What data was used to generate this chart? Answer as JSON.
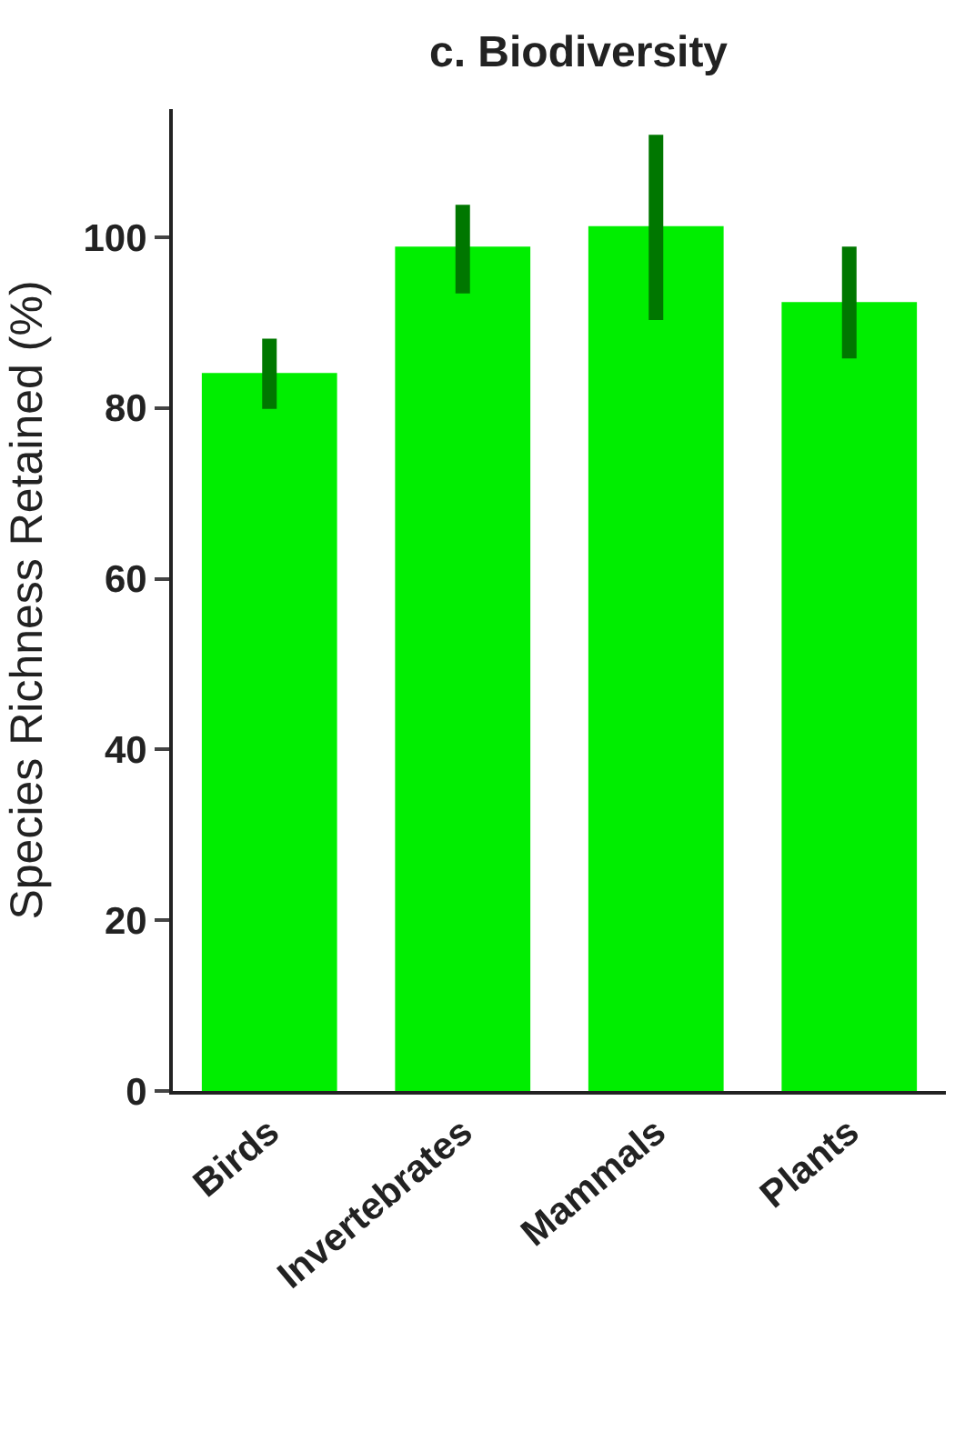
{
  "chart_data": {
    "type": "bar",
    "title": "c. Biodiversity",
    "ylabel": "Species Richness Retained (%)",
    "categories": [
      "Birds",
      "Invertebrates",
      "Mammals",
      "Plants"
    ],
    "values": [
      84.1,
      98.9,
      101.3,
      92.4
    ],
    "errors": [
      [
        79.9,
        88.1
      ],
      [
        93.4,
        103.8
      ],
      [
        90.3,
        112
      ],
      [
        85.8,
        98.9
      ]
    ],
    "color": "#00ee00",
    "ylim": [
      0,
      115
    ],
    "yticks": [
      0,
      20,
      40,
      60,
      80,
      100
    ]
  }
}
